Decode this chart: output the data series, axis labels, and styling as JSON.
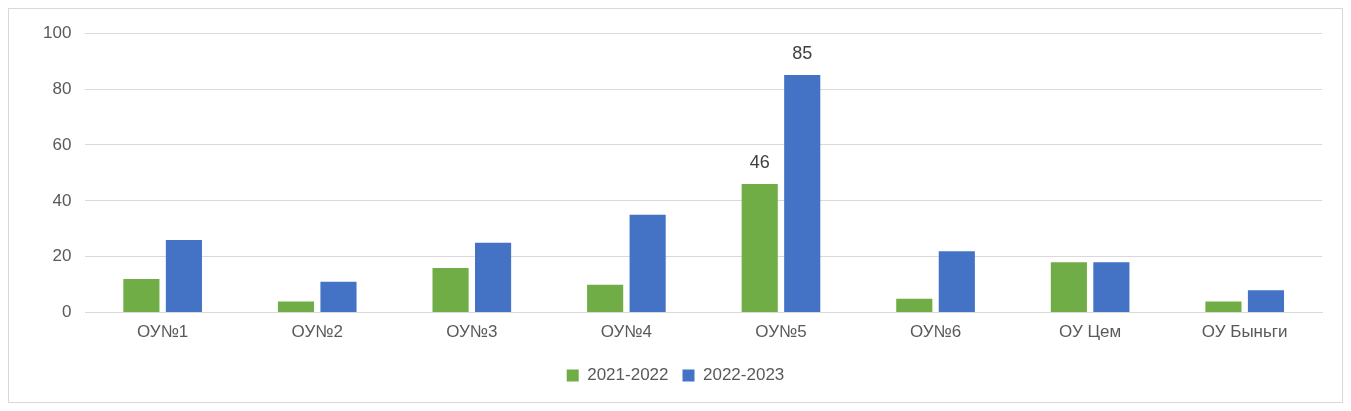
{
  "chart_data": {
    "type": "bar",
    "categories": [
      "ОУ№1",
      "ОУ№2",
      "ОУ№3",
      "ОУ№4",
      "ОУ№5",
      "ОУ№6",
      "ОУ Цем",
      "ОУ Быньги"
    ],
    "series": [
      {
        "name": "2021-2022",
        "color": "#70ad47",
        "values": [
          12,
          4,
          16,
          10,
          46,
          5,
          18,
          4
        ],
        "value_labels": [
          null,
          null,
          null,
          null,
          "46",
          null,
          null,
          null
        ]
      },
      {
        "name": "2022-2023",
        "color": "#4472c4",
        "values": [
          26,
          11,
          25,
          35,
          85,
          22,
          18,
          8
        ],
        "value_labels": [
          null,
          null,
          null,
          null,
          "85",
          null,
          null,
          null
        ]
      }
    ],
    "ylim": [
      0,
      100
    ],
    "yticks": [
      0,
      20,
      40,
      60,
      80,
      100
    ],
    "grid": "y",
    "legend": "bottom"
  }
}
